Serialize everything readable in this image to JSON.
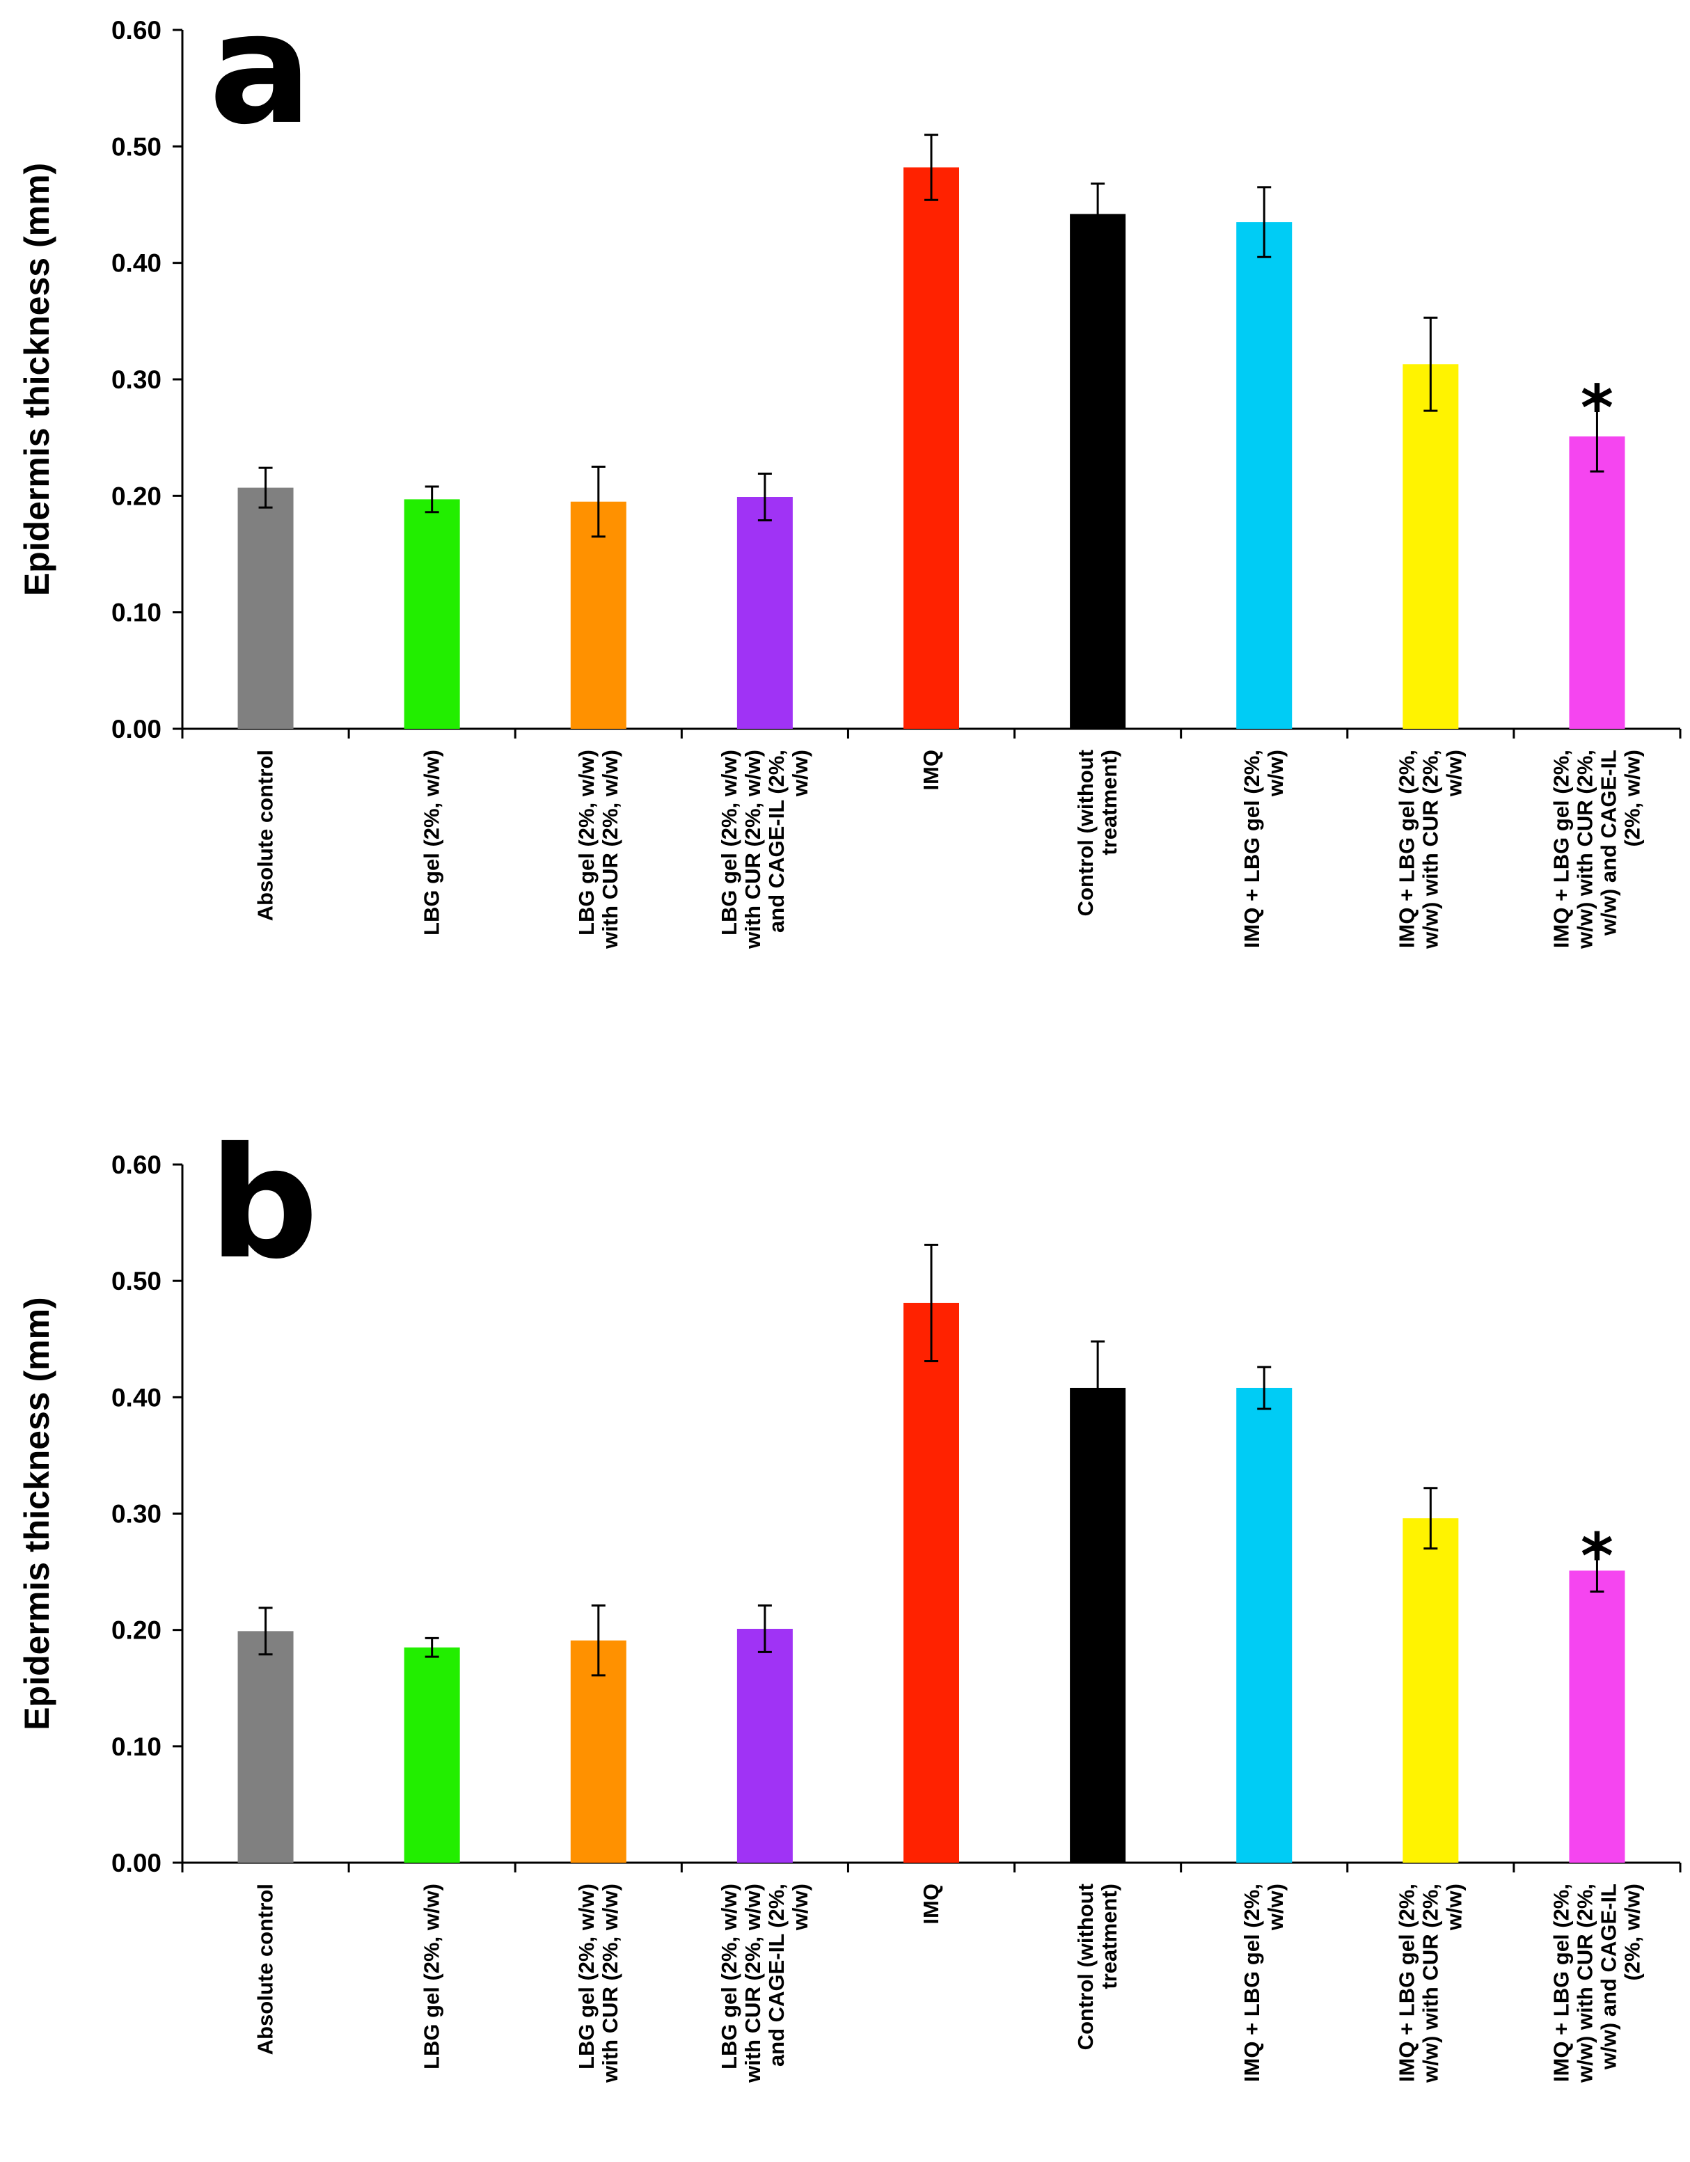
{
  "chart_data": [
    {
      "type": "bar",
      "panel_label": "a",
      "ylabel": "Epidermis thickness (mm)",
      "xlabel": "",
      "ylim": [
        0,
        0.6
      ],
      "yticks": [
        "0.00",
        "0.10",
        "0.20",
        "0.30",
        "0.40",
        "0.50",
        "0.60"
      ],
      "categories": [
        [
          "Absolute control"
        ],
        [
          "LBG gel (2%, w/w)"
        ],
        [
          "LBG gel (2%, w/w)",
          "with CUR (2%, w/w)"
        ],
        [
          "LBG gel (2%, w/w)",
          "with CUR (2%, w/w)",
          "and CAGE-IL (2%,",
          "w/w)"
        ],
        [
          "IMQ"
        ],
        [
          "Control (without",
          "treatment)"
        ],
        [
          "IMQ + LBG gel (2%,",
          "w/w)"
        ],
        [
          "IMQ + LBG gel (2%,",
          "w/w) with CUR (2%,",
          "w/w)"
        ],
        [
          "IMQ + LBG gel (2%,",
          "w/w) with CUR (2%,",
          "w/w) and CAGE-IL",
          "(2%, w/w)"
        ]
      ],
      "values": [
        0.207,
        0.197,
        0.195,
        0.199,
        0.482,
        0.442,
        0.435,
        0.313,
        0.251
      ],
      "errors": [
        0.017,
        0.011,
        0.03,
        0.02,
        0.028,
        0.026,
        0.03,
        0.04,
        0.03
      ],
      "colors": [
        "#808080",
        "#22ee00",
        "#ff9100",
        "#a033f5",
        "#ff2200",
        "#000000",
        "#00ccf5",
        "#fff300",
        "#f545f0"
      ],
      "annotations": [
        {
          "category_index": 8,
          "text": "*"
        }
      ]
    },
    {
      "type": "bar",
      "panel_label": "b",
      "ylabel": "Epidermis thickness (mm)",
      "xlabel": "",
      "ylim": [
        0,
        0.6
      ],
      "yticks": [
        "0.00",
        "0.10",
        "0.20",
        "0.30",
        "0.40",
        "0.50",
        "0.60"
      ],
      "categories": [
        [
          "Absolute control"
        ],
        [
          "LBG gel (2%, w/w)"
        ],
        [
          "LBG gel (2%, w/w)",
          "with CUR (2%, w/w)"
        ],
        [
          "LBG gel (2%, w/w)",
          "with CUR (2%, w/w)",
          "and CAGE-IL (2%,",
          "w/w)"
        ],
        [
          "IMQ"
        ],
        [
          "Control (without",
          "treatment)"
        ],
        [
          "IMQ + LBG gel (2%,",
          "w/w)"
        ],
        [
          "IMQ + LBG gel (2%,",
          "w/w) with CUR (2%,",
          "w/w)"
        ],
        [
          "IMQ + LBG gel (2%,",
          "w/w) with CUR (2%,",
          "w/w) and CAGE-IL",
          "(2%, w/w)"
        ]
      ],
      "values": [
        0.199,
        0.185,
        0.191,
        0.201,
        0.481,
        0.408,
        0.408,
        0.296,
        0.251
      ],
      "errors": [
        0.02,
        0.008,
        0.03,
        0.02,
        0.05,
        0.04,
        0.018,
        0.026,
        0.018
      ],
      "colors": [
        "#808080",
        "#22ee00",
        "#ff9100",
        "#a033f5",
        "#ff2200",
        "#000000",
        "#00ccf5",
        "#fff300",
        "#f545f0"
      ],
      "annotations": [
        {
          "category_index": 8,
          "text": "*"
        }
      ]
    }
  ]
}
